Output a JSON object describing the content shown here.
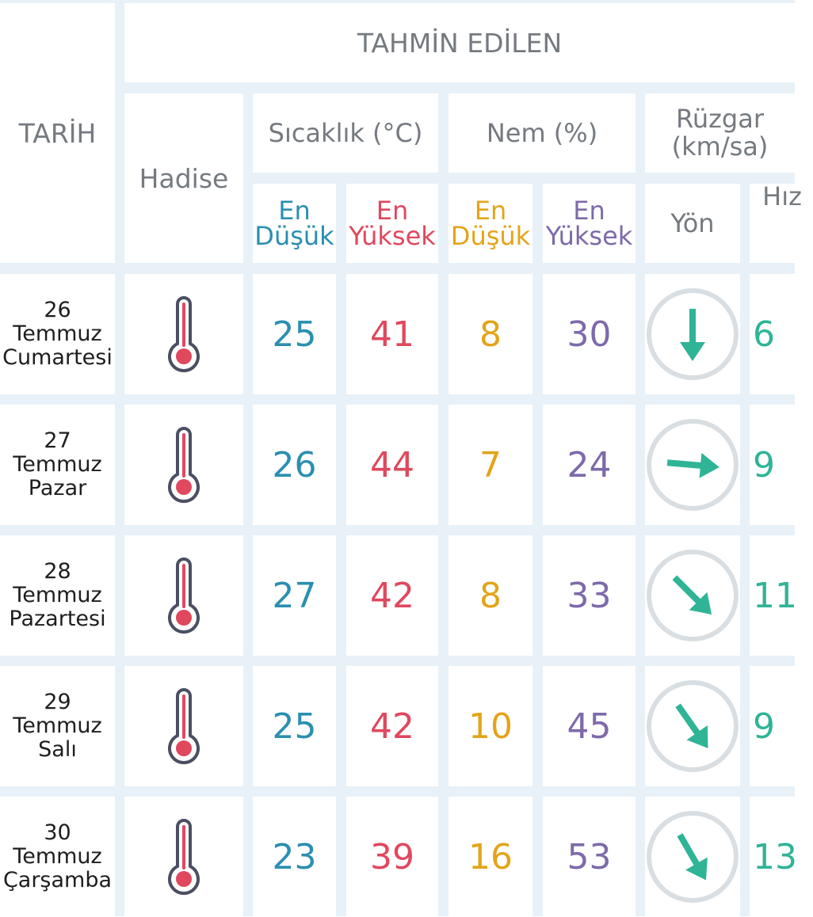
{
  "header": {
    "date_label": "TARİH",
    "forecast_label": "TAHMİN EDİLEN",
    "event_label": "Hadise",
    "temp_label": "Sıcaklık (°C)",
    "humidity_label": "Nem (%)",
    "wind_label_line1": "Rüzgar",
    "wind_label_line2": "(km/sa)",
    "min_line1": "En",
    "min_line2": "Düşük",
    "max_line1": "En",
    "max_line2": "Yüksek",
    "direction_label": "Yön",
    "speed_label": "Hız"
  },
  "colors": {
    "min_temp": "#2a8fb0",
    "max_temp": "#e0485e",
    "min_humidity": "#e3a418",
    "max_humidity": "#7d6aaa",
    "wind": "#2fb496"
  },
  "rows": [
    {
      "day": "26",
      "month": "Temmuz",
      "weekday": "Cumartesi",
      "icon": "thermometer-icon",
      "temp_min": "25",
      "temp_max": "41",
      "hum_min": "8",
      "hum_max": "30",
      "wind_dir_deg": 180,
      "wind_speed": "6"
    },
    {
      "day": "27",
      "month": "Temmuz",
      "weekday": "Pazar",
      "icon": "thermometer-icon",
      "temp_min": "26",
      "temp_max": "44",
      "hum_min": "7",
      "hum_max": "24",
      "wind_dir_deg": 95,
      "wind_speed": "9"
    },
    {
      "day": "28",
      "month": "Temmuz",
      "weekday": "Pazartesi",
      "icon": "thermometer-icon",
      "temp_min": "27",
      "temp_max": "42",
      "hum_min": "8",
      "hum_max": "33",
      "wind_dir_deg": 135,
      "wind_speed": "11"
    },
    {
      "day": "29",
      "month": "Temmuz",
      "weekday": "Salı",
      "icon": "thermometer-icon",
      "temp_min": "25",
      "temp_max": "42",
      "hum_min": "10",
      "hum_max": "45",
      "wind_dir_deg": 145,
      "wind_speed": "9"
    },
    {
      "day": "30",
      "month": "Temmuz",
      "weekday": "Çarşamba",
      "icon": "thermometer-icon",
      "temp_min": "23",
      "temp_max": "39",
      "hum_min": "16",
      "hum_max": "53",
      "wind_dir_deg": 150,
      "wind_speed": "13"
    }
  ]
}
